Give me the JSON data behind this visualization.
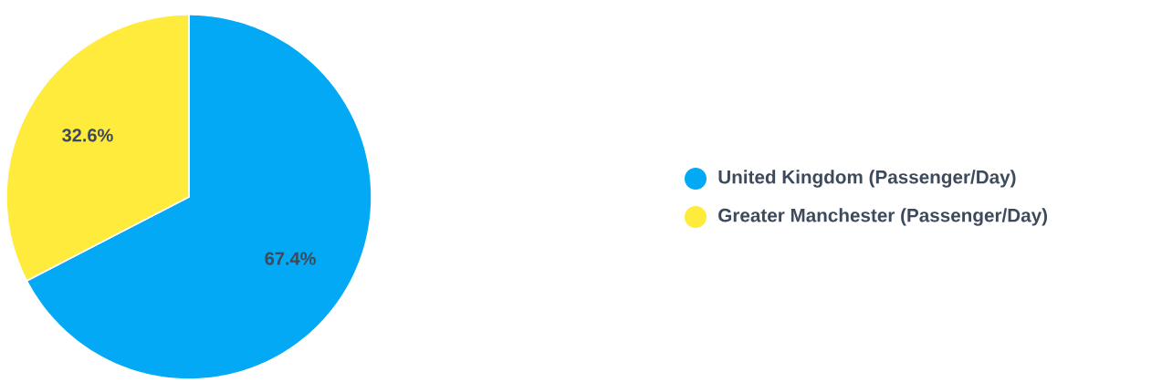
{
  "chart_data": {
    "type": "pie",
    "categories": [
      "United Kingdom (Passenger/Day)",
      "Greater Manchester (Passenger/Day)"
    ],
    "values": [
      67.4,
      32.6
    ],
    "colors": [
      "#03a9f4",
      "#ffeb3b"
    ],
    "value_labels": [
      "67.4%",
      "32.6%"
    ],
    "legend": "right"
  }
}
